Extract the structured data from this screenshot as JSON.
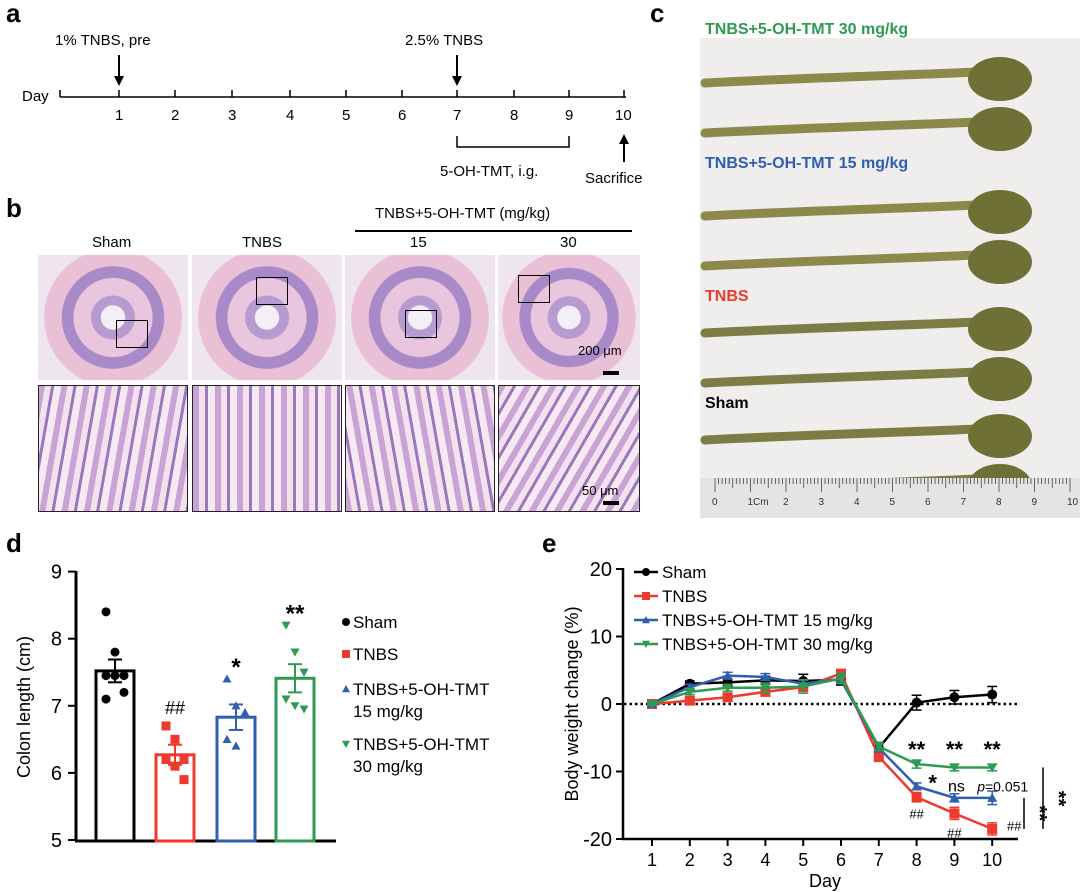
{
  "panels": {
    "a": "a",
    "b": "b",
    "c": "c",
    "d": "d",
    "e": "e"
  },
  "timeline": {
    "axis_label": "Day",
    "days": [
      "1",
      "2",
      "3",
      "4",
      "5",
      "6",
      "7",
      "8",
      "9",
      "10"
    ],
    "pre_label": "1% TNBS, pre",
    "tnbs_label": "2.5% TNBS",
    "treatment_label": "5-OH-TMT, i.g.",
    "sacrifice_label": "Sacrifice"
  },
  "histology": {
    "group_header": "TNBS+5-OH-TMT (mg/kg)",
    "columns": [
      "Sham",
      "TNBS",
      "15",
      "30"
    ],
    "scale_top": "200 μm",
    "scale_bottom": "50 μm"
  },
  "photo": {
    "labels": [
      {
        "text": "TNBS+5-OH-TMT 30 mg/kg",
        "color": "#2e9a52"
      },
      {
        "text": "TNBS+5-OH-TMT 15 mg/kg",
        "color": "#2f5fb0"
      },
      {
        "text": "TNBS",
        "color": "#ee3a2c"
      },
      {
        "text": "Sham",
        "color": "#000000"
      }
    ],
    "ruler_labels": [
      "0",
      "1Cm",
      "2",
      "3",
      "4",
      "5",
      "6",
      "7",
      "8",
      "9",
      "10"
    ]
  },
  "chart_data": [
    {
      "type": "bar",
      "ylabel": "Colon length (cm)",
      "ylim": [
        5,
        9
      ],
      "yticks": [
        "5",
        "6",
        "7",
        "8",
        "9"
      ],
      "categories": [
        "Sham",
        "TNBS",
        "TNBS+5-OH-TMT 15 mg/kg",
        "TNBS+5-OH-TMT 30 mg/kg"
      ],
      "legend": [
        {
          "text": "Sham",
          "line2": ""
        },
        {
          "text": "TNBS",
          "line2": ""
        },
        {
          "text": "TNBS+5-OH-TMT",
          "line2": "15 mg/kg"
        },
        {
          "text": "TNBS+5-OH-TMT",
          "line2": "30 mg/kg"
        }
      ],
      "legend_position": "right",
      "colors": [
        "#000000",
        "#ee3a2c",
        "#2f5fb0",
        "#2e9a52"
      ],
      "markers": [
        "circle",
        "square",
        "triangle-up",
        "triangle-down"
      ],
      "values": [
        7.52,
        6.27,
        6.83,
        7.41
      ],
      "sem": [
        0.17,
        0.15,
        0.19,
        0.21
      ],
      "points": [
        [
          8.4,
          7.8,
          7.45,
          7.45,
          7.45,
          7.2,
          7.1
        ],
        [
          6.7,
          6.5,
          6.2,
          6.2,
          6.1,
          5.9
        ],
        [
          7.4,
          7.0,
          6.9,
          6.5,
          6.4
        ],
        [
          8.2,
          7.8,
          7.5,
          7.1,
          7.0,
          6.95
        ]
      ],
      "annotations": [
        "",
        "##",
        "*",
        "**"
      ]
    },
    {
      "type": "line",
      "xlabel": "Day",
      "ylabel": "Body weight change (%)",
      "ylim": [
        -20,
        20
      ],
      "yticks": [
        "-20",
        "-10",
        "0",
        "10",
        "20"
      ],
      "x": [
        1,
        2,
        3,
        4,
        5,
        6,
        7,
        8,
        9,
        10
      ],
      "legend_position": "top-left",
      "reference_line": 0,
      "series": [
        {
          "name": "Sham",
          "color": "#000000",
          "marker": "circle",
          "values": [
            0,
            3,
            3.2,
            3.5,
            3.4,
            3.6,
            -6.5,
            0.2,
            1.0,
            1.4
          ],
          "err": [
            0.3,
            0.4,
            0.5,
            0.6,
            1.0,
            0.8,
            0.8,
            1.1,
            1.0,
            1.2
          ]
        },
        {
          "name": "TNBS",
          "color": "#ee3a2c",
          "marker": "square",
          "values": [
            0,
            0.5,
            1.0,
            1.8,
            2.5,
            4.5,
            -7.8,
            -13.8,
            -16.2,
            -18.5
          ],
          "err": [
            0.2,
            0.4,
            0.5,
            0.6,
            0.6,
            0.5,
            0.7,
            0.7,
            0.9,
            0.9
          ]
        },
        {
          "name": "TNBS+5-OH-TMT 15 mg/kg",
          "color": "#2f5fb0",
          "marker": "triangle-up",
          "values": [
            0,
            2.5,
            4.2,
            4.0,
            3.0,
            3.7,
            -6.5,
            -12.2,
            -13.9,
            -13.9
          ],
          "err": [
            0.2,
            0.4,
            0.5,
            0.5,
            0.5,
            0.6,
            0.6,
            0.5,
            0.6,
            1.0
          ]
        },
        {
          "name": "TNBS+5-OH-TMT 30 mg/kg",
          "color": "#2e9a52",
          "marker": "triangle-down",
          "values": [
            0,
            1.8,
            2.4,
            2.4,
            2.6,
            3.8,
            -6.3,
            -8.9,
            -9.4,
            -9.4
          ],
          "err": [
            0.2,
            0.4,
            0.5,
            0.7,
            1.0,
            0.8,
            0.6,
            0.6,
            0.5,
            0.5
          ]
        }
      ],
      "annotations": {
        "day8_30": "**",
        "day9_30": "**",
        "day10_30": "**",
        "day8_15": "*",
        "day9_15": "ns",
        "day10_15_p": "p",
        "day10_15_val": "=0.051",
        "tnbs_hash": "##",
        "bracket_15": "**",
        "bracket_30": "**"
      }
    }
  ]
}
